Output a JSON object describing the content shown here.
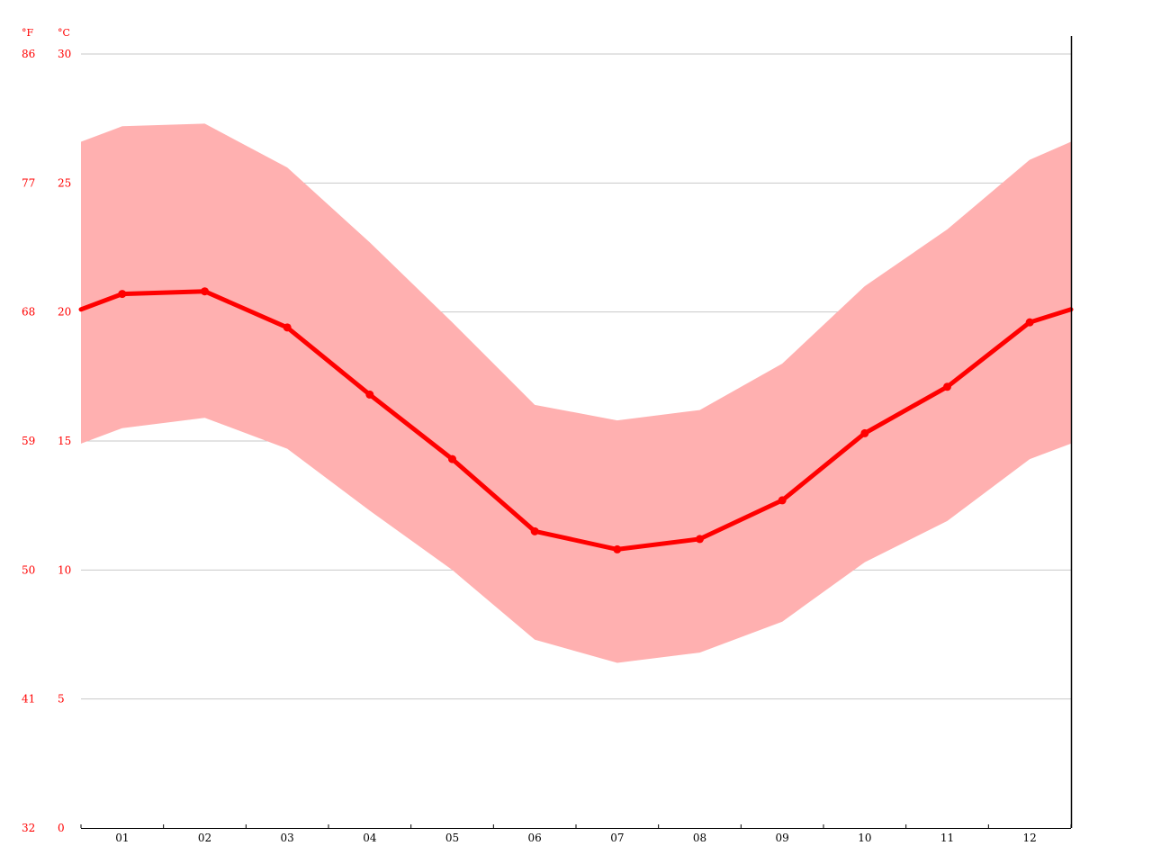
{
  "chart_data": {
    "type": "line",
    "categories": [
      "01",
      "02",
      "03",
      "04",
      "05",
      "06",
      "07",
      "08",
      "09",
      "10",
      "11",
      "12"
    ],
    "series": [
      {
        "role": "mean",
        "values": [
          20.7,
          20.8,
          19.4,
          16.8,
          14.3,
          11.5,
          10.8,
          11.2,
          12.7,
          15.3,
          17.1,
          19.6
        ]
      },
      {
        "role": "max",
        "values": [
          27.2,
          27.3,
          25.6,
          22.7,
          19.6,
          16.4,
          15.8,
          16.2,
          18.0,
          21.0,
          23.2,
          25.9
        ]
      },
      {
        "role": "min",
        "values": [
          15.5,
          15.9,
          14.7,
          12.3,
          10.0,
          7.3,
          6.4,
          6.8,
          8.0,
          10.3,
          11.9,
          14.3
        ]
      }
    ],
    "edge_values": {
      "mean": [
        20.1,
        20.1
      ],
      "max": [
        26.6,
        26.6
      ],
      "min": [
        14.9,
        14.9
      ]
    },
    "ylim": [
      0,
      30
    ],
    "y_ticks_c": [
      "0",
      "5",
      "10",
      "15",
      "20",
      "25",
      "30"
    ],
    "y_ticks_f": [
      "32",
      "41",
      "50",
      "59",
      "68",
      "77",
      "86"
    ],
    "unit_f": "°F",
    "unit_c": "°C",
    "grid": true,
    "colors": {
      "line": "#ff0000",
      "band": "#ffb0b0",
      "grid": "#c8c8c8",
      "axis_text": "#ff0000",
      "x_text": "#000000"
    }
  }
}
